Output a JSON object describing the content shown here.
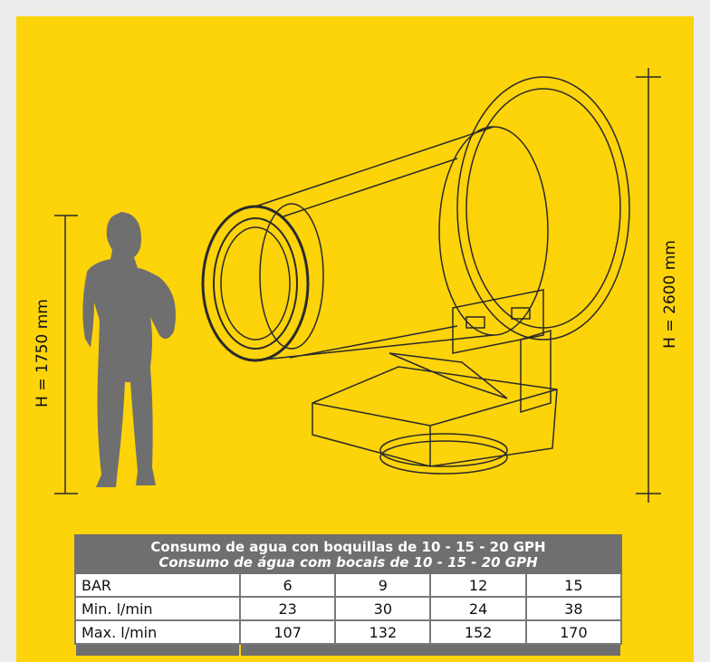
{
  "dimensions": {
    "person_height": "H = 1750 mm",
    "machine_height": "H = 2600 mm"
  },
  "table": {
    "title": "Consumo de agua con boquillas de 10 - 15 - 20 GPH",
    "subtitle": "Consumo de água com bocais de 10 - 15 - 20 GPH",
    "rows": [
      [
        "BAR",
        "6",
        "9",
        "12",
        "15"
      ],
      [
        "Min. l/min",
        "23",
        "30",
        "24",
        "38"
      ],
      [
        "Max. l/min",
        "107",
        "132",
        "152",
        "170"
      ]
    ]
  }
}
